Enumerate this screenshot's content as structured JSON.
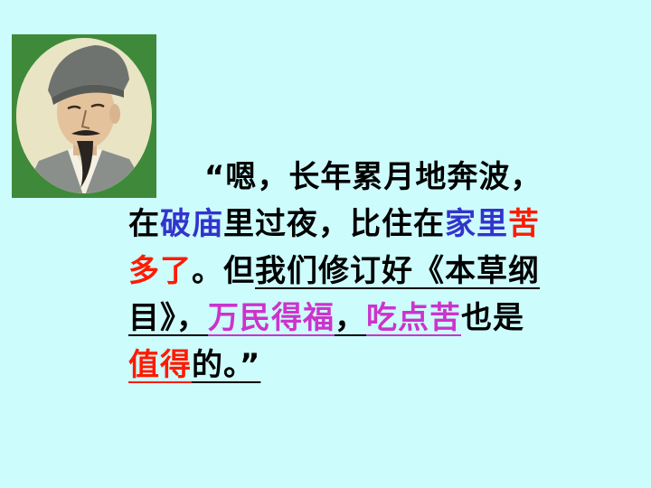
{
  "quote": {
    "line1": "“嗯，长年累月地奔波，",
    "line2": [
      {
        "text": "在",
        "style": "black"
      },
      {
        "text": "破庙",
        "style": "blue"
      },
      {
        "text": "里过夜，比住在",
        "style": "black"
      },
      {
        "text": "家里",
        "style": "blue"
      },
      {
        "text": "苦",
        "style": "red"
      }
    ],
    "line3": [
      {
        "text": "多了",
        "style": "red"
      },
      {
        "text": "。但",
        "style": "black"
      },
      {
        "text": "我们修订好《本草纲",
        "style": "black-underline"
      }
    ],
    "line4": [
      {
        "text": "目》，",
        "style": "black-underline"
      },
      {
        "text": "万民得福",
        "style": "pink-underline"
      },
      {
        "text": "，",
        "style": "black-underline"
      },
      {
        "text": "吃点苦",
        "style": "pink-underline"
      },
      {
        "text": "也是",
        "style": "black"
      }
    ],
    "line5": [
      {
        "text": "值得",
        "style": "red-underline"
      },
      {
        "text": "的。”",
        "style": "black-underline"
      }
    ]
  },
  "colors": {
    "background": "#ccfcfc",
    "portrait_frame": "#3e8a3a",
    "red": "#ff1a00",
    "blue": "#3333cc",
    "pink": "#cc33cc"
  },
  "portrait": {
    "icon": "scholar-portrait-illustration"
  }
}
